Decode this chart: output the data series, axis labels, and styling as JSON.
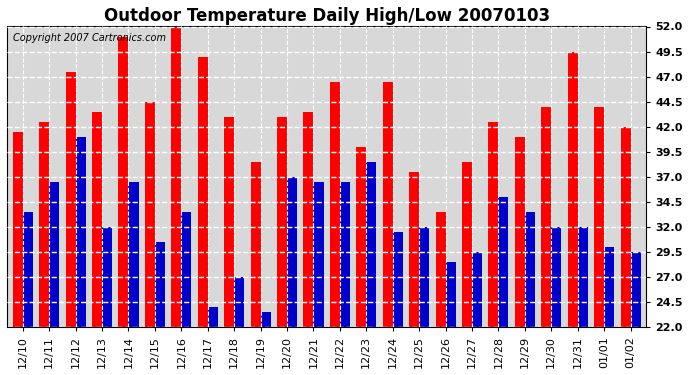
{
  "title": "Outdoor Temperature Daily High/Low 20070103",
  "copyright_text": "Copyright 2007 Cartronics.com",
  "dates": [
    "12/10",
    "12/11",
    "12/12",
    "12/13",
    "12/14",
    "12/15",
    "12/16",
    "12/17",
    "12/18",
    "12/19",
    "12/20",
    "12/21",
    "12/22",
    "12/23",
    "12/24",
    "12/25",
    "12/26",
    "12/27",
    "12/28",
    "12/29",
    "12/30",
    "12/31",
    "01/01",
    "01/02"
  ],
  "highs": [
    41.5,
    42.5,
    47.5,
    43.5,
    51.0,
    44.5,
    52.5,
    49.0,
    43.0,
    38.5,
    43.0,
    43.5,
    46.5,
    40.0,
    46.5,
    37.5,
    33.5,
    38.5,
    42.5,
    41.0,
    44.0,
    49.5,
    44.0,
    42.0
  ],
  "lows": [
    33.5,
    36.5,
    41.0,
    32.0,
    36.5,
    30.5,
    33.5,
    24.0,
    27.0,
    23.5,
    37.0,
    36.5,
    36.5,
    38.5,
    31.5,
    32.0,
    28.5,
    29.5,
    35.0,
    33.5,
    32.0,
    32.0,
    30.0,
    29.5
  ],
  "bar_color_high": "#ff0000",
  "bar_color_low": "#0000cc",
  "background_color": "#ffffff",
  "plot_background": "#d8d8d8",
  "grid_color": "#ffffff",
  "ymin": 22.0,
  "ymax": 52.0,
  "yticks": [
    22.0,
    24.5,
    27.0,
    29.5,
    32.0,
    34.5,
    37.0,
    39.5,
    42.0,
    44.5,
    47.0,
    49.5,
    52.0
  ],
  "title_fontsize": 12,
  "tick_fontsize": 8,
  "bar_width": 0.38
}
